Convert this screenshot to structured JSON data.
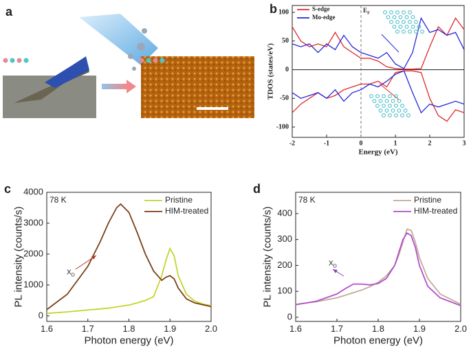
{
  "chart_data": [
    {
      "type": "image",
      "label": "a"
    },
    {
      "type": "line",
      "label": "b",
      "serif": true,
      "x_label": "Energy (eV)",
      "y_label": "TDOS (states/eV)",
      "xlim": [
        -2,
        3
      ],
      "ylim": [
        -118,
        112
      ],
      "xticks": [
        -2,
        -1,
        0,
        1,
        2,
        3
      ],
      "yticks": [
        -100,
        -50,
        0,
        50,
        100
      ],
      "x": [
        -2,
        -1.75,
        -1.5,
        -1.25,
        -1,
        -0.75,
        -0.5,
        -0.25,
        0,
        0.25,
        0.5,
        0.75,
        1,
        1.25,
        1.5,
        1.75,
        2,
        2.25,
        2.5,
        2.75,
        3
      ],
      "series": [
        {
          "name": "S-edge",
          "color": "#e0272a",
          "values": [
            75,
            50,
            40,
            45,
            40,
            65,
            40,
            30,
            20,
            20,
            15,
            5,
            2,
            1,
            1,
            2,
            40,
            75,
            60,
            90,
            70
          ]
        },
        {
          "name": "Mo-edge",
          "color": "#2327d8",
          "values": [
            45,
            40,
            45,
            30,
            45,
            35,
            60,
            40,
            30,
            25,
            20,
            30,
            10,
            2,
            30,
            90,
            65,
            70,
            60,
            65,
            35
          ]
        },
        {
          "color": "#e0272a",
          "values": [
            -75,
            -60,
            -50,
            -40,
            -50,
            -45,
            -35,
            -30,
            -25,
            -25,
            -20,
            -30,
            -5,
            -2,
            -2,
            -5,
            -50,
            -80,
            -90,
            -70,
            -75
          ]
        },
        {
          "color": "#2327d8",
          "values": [
            -40,
            -50,
            -45,
            -40,
            -50,
            -35,
            -55,
            -40,
            -35,
            -25,
            -30,
            -20,
            -8,
            -2,
            -40,
            -75,
            -60,
            -65,
            -60,
            -55,
            -60
          ]
        }
      ],
      "annotations": [
        {
          "text": "E",
          "subscript": "F"
        }
      ]
    },
    {
      "type": "line",
      "label": "c",
      "x_label": "Photon energy (eV)",
      "y_label": "PL intensity (counts/s)",
      "xlim": [
        1.6,
        2.0
      ],
      "ylim": [
        -180,
        4000
      ],
      "xticks": [
        1.6,
        1.7,
        1.8,
        1.9,
        {
          "value": 2.0,
          "label": "2.0"
        }
      ],
      "yticks": [
        0,
        1000,
        2000,
        3000,
        4000
      ],
      "x": [
        1.6,
        1.65,
        1.7,
        1.73,
        1.75,
        1.77,
        1.78,
        1.8,
        1.82,
        1.84,
        1.86,
        1.88,
        1.89,
        1.9,
        1.91,
        1.92,
        1.94,
        1.96,
        1.98,
        2.0
      ],
      "series": [
        {
          "name": "Pristine",
          "color": "#c3d42c",
          "values": [
            80,
            130,
            190,
            225,
            250,
            290,
            310,
            350,
            420,
            500,
            620,
            1300,
            1800,
            2180,
            1950,
            1300,
            700,
            480,
            380,
            330
          ]
        },
        {
          "name": "HIM-treated",
          "color": "#7a3f14",
          "values": [
            200,
            700,
            1600,
            2400,
            3000,
            3500,
            3620,
            3350,
            2700,
            2000,
            1450,
            1150,
            1250,
            1300,
            1200,
            900,
            550,
            420,
            360,
            300
          ]
        }
      ],
      "annotations": [
        {
          "text": "78 K"
        },
        {
          "text": "X",
          "subscript": "D"
        }
      ]
    },
    {
      "type": "line",
      "label": "d",
      "x_label": "Photon energy (eV)",
      "y_label": "PL intensity (counts/s)",
      "xlim": [
        1.6,
        2.0
      ],
      "ylim": [
        -16,
        482
      ],
      "xticks": [
        1.6,
        1.7,
        1.8,
        1.9,
        {
          "value": 2.0,
          "label": "2.0"
        }
      ],
      "yticks": [
        0,
        100,
        200,
        300,
        400
      ],
      "x": [
        1.6,
        1.65,
        1.7,
        1.72,
        1.74,
        1.76,
        1.78,
        1.8,
        1.82,
        1.84,
        1.85,
        1.86,
        1.87,
        1.88,
        1.89,
        1.9,
        1.92,
        1.95,
        2.0
      ],
      "series": [
        {
          "name": "Pristine",
          "color": "#c2aa9a",
          "values": [
            50,
            60,
            75,
            85,
            95,
            105,
            118,
            135,
            160,
            200,
            240,
            290,
            340,
            335,
            290,
            230,
            150,
            90,
            50
          ]
        },
        {
          "name": "HIM-treated",
          "color": "#b24fc9",
          "values": [
            48,
            62,
            90,
            110,
            128,
            128,
            125,
            130,
            150,
            200,
            250,
            300,
            325,
            315,
            270,
            200,
            120,
            75,
            45
          ]
        }
      ],
      "annotations": [
        {
          "text": "78 K"
        },
        {
          "text": "X",
          "subscript": "D"
        }
      ]
    }
  ]
}
